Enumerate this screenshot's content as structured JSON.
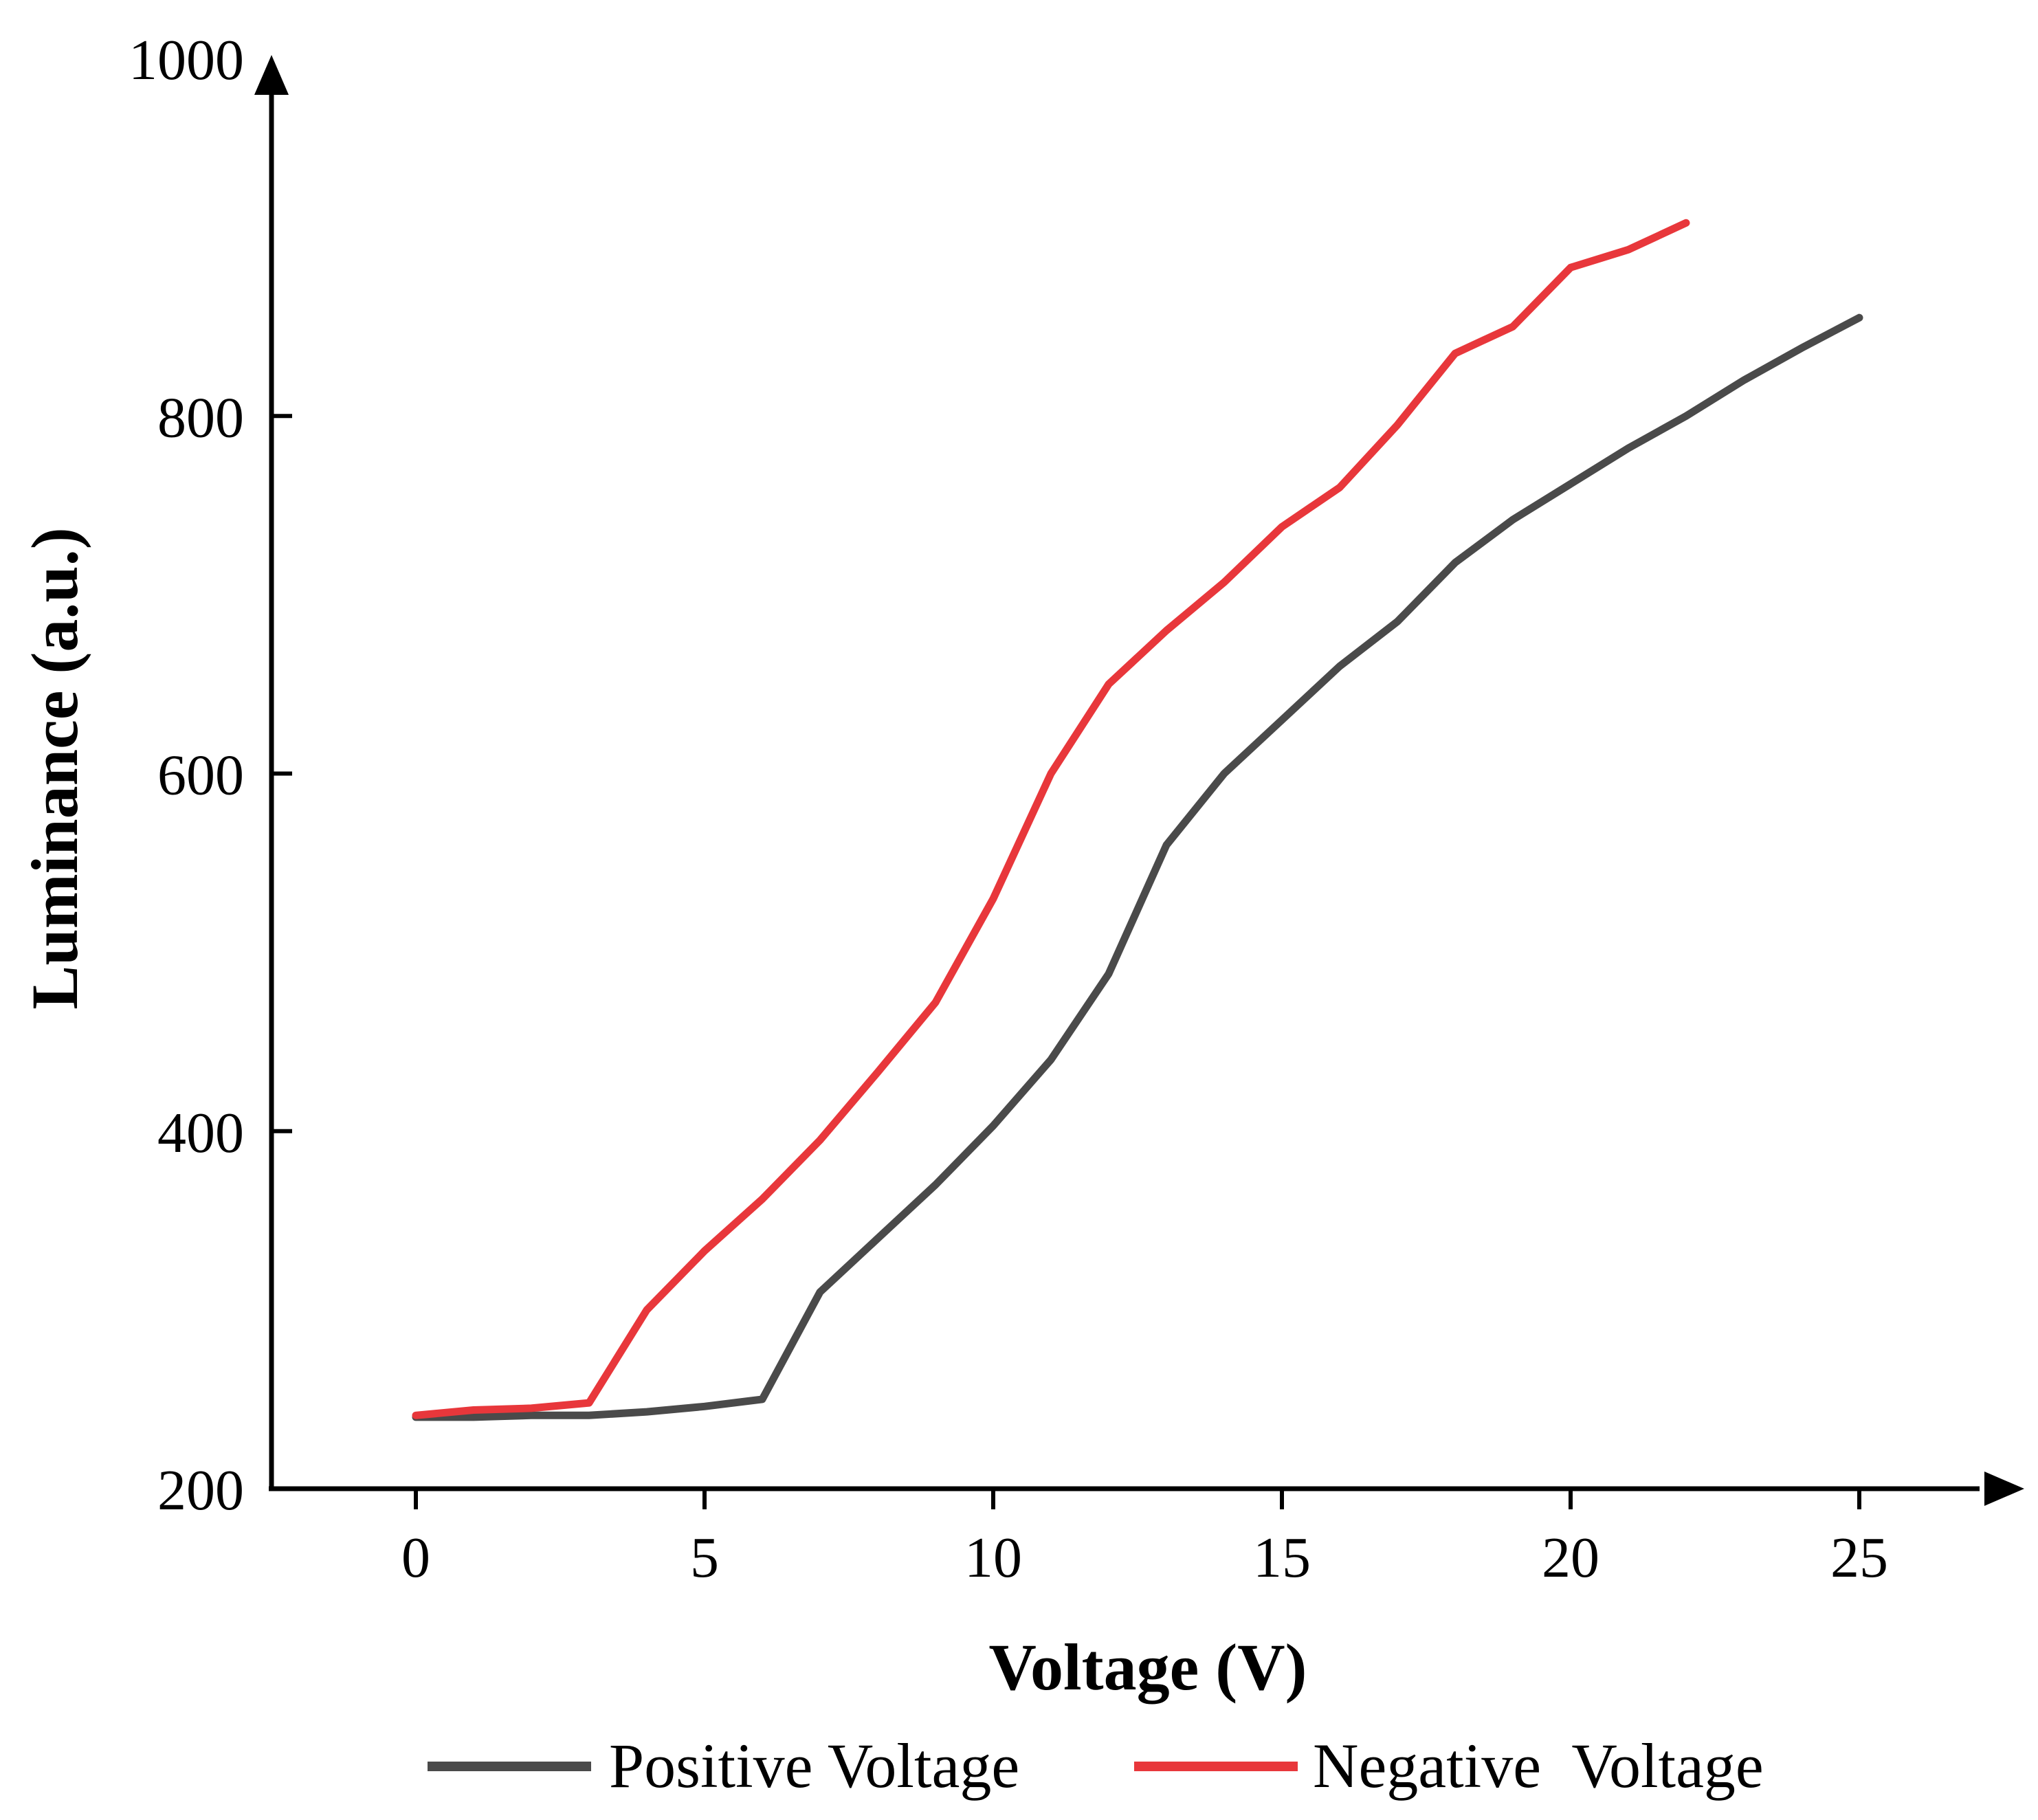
{
  "chart_data": {
    "type": "line",
    "xlabel": "Voltage (V)",
    "ylabel": "Luminance (a.u.)",
    "xlim": [
      -2.5,
      27.5
    ],
    "ylim": [
      200,
      1000
    ],
    "xticks": [
      0,
      5,
      10,
      15,
      20,
      25
    ],
    "yticks": [
      200,
      400,
      600,
      800,
      1000
    ],
    "grid": false,
    "legend_position": "bottom",
    "series": [
      {
        "name": "Positive Voltage",
        "color": "#4a4a4a",
        "x": [
          0,
          1,
          2,
          3,
          4,
          5,
          6,
          7,
          8,
          9,
          10,
          11,
          12,
          13,
          14,
          15,
          16,
          17,
          18,
          19,
          20,
          21,
          22,
          23,
          24,
          25
        ],
        "values": [
          240,
          240,
          241,
          241,
          243,
          246,
          250,
          310,
          340,
          370,
          403,
          440,
          488,
          560,
          600,
          630,
          660,
          685,
          718,
          742,
          762,
          782,
          800,
          820,
          838,
          855
        ]
      },
      {
        "name": "Negative  Voltage",
        "color": "#e8373b",
        "x": [
          0,
          1,
          2,
          3,
          4,
          5,
          6,
          7,
          8,
          9,
          10,
          11,
          12,
          13,
          14,
          15,
          16,
          17,
          18,
          19,
          20,
          21,
          22
        ],
        "values": [
          241,
          244,
          245,
          248,
          300,
          333,
          362,
          395,
          433,
          472,
          530,
          600,
          650,
          680,
          707,
          738,
          760,
          795,
          835,
          850,
          883,
          893,
          908
        ]
      }
    ]
  }
}
